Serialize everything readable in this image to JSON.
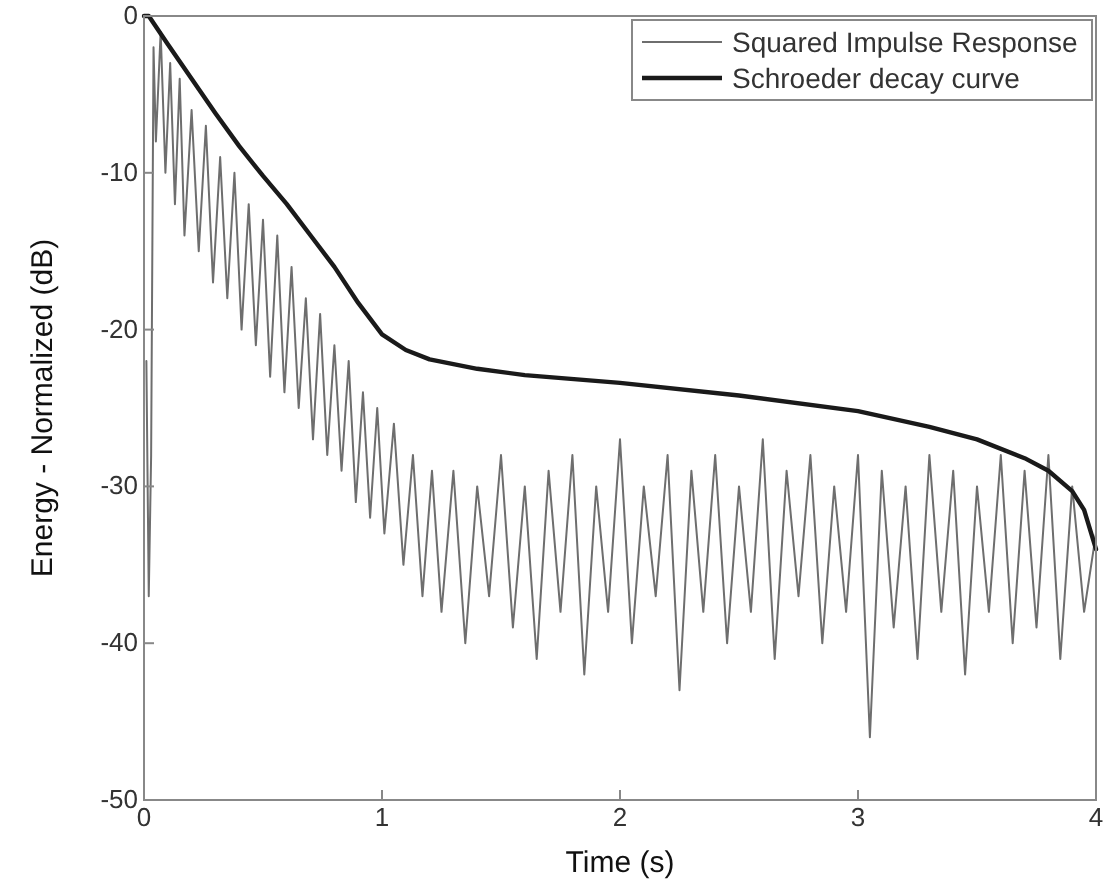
{
  "chart_data": {
    "type": "line",
    "xlabel": "Time (s)",
    "ylabel": "Energy - Normalized (dB)",
    "xlim": [
      0,
      4
    ],
    "ylim": [
      -50,
      0
    ],
    "xticks": [
      0,
      1,
      2,
      3,
      4
    ],
    "yticks": [
      -50,
      -40,
      -30,
      -20,
      -10,
      0
    ],
    "legend": "top right",
    "grid": false,
    "line_style": "solid",
    "series": [
      {
        "name": "Squared Impulse Response",
        "color": "#6e6e6e",
        "x": [
          0.01,
          0.02,
          0.03,
          0.04,
          0.05,
          0.07,
          0.09,
          0.11,
          0.13,
          0.15,
          0.17,
          0.2,
          0.23,
          0.26,
          0.29,
          0.32,
          0.35,
          0.38,
          0.41,
          0.44,
          0.47,
          0.5,
          0.53,
          0.56,
          0.59,
          0.62,
          0.65,
          0.68,
          0.71,
          0.74,
          0.77,
          0.8,
          0.83,
          0.86,
          0.89,
          0.92,
          0.95,
          0.98,
          1.01,
          1.05,
          1.09,
          1.13,
          1.17,
          1.21,
          1.25,
          1.3,
          1.35,
          1.4,
          1.45,
          1.5,
          1.55,
          1.6,
          1.65,
          1.7,
          1.75,
          1.8,
          1.85,
          1.9,
          1.95,
          2.0,
          2.05,
          2.1,
          2.15,
          2.2,
          2.25,
          2.3,
          2.35,
          2.4,
          2.45,
          2.5,
          2.55,
          2.6,
          2.65,
          2.7,
          2.75,
          2.8,
          2.85,
          2.9,
          2.95,
          3.0,
          3.05,
          3.1,
          3.15,
          3.2,
          3.25,
          3.3,
          3.35,
          3.4,
          3.45,
          3.5,
          3.55,
          3.6,
          3.65,
          3.7,
          3.75,
          3.8,
          3.85,
          3.9,
          3.95,
          4.0
        ],
        "values": [
          -22,
          -37,
          -28,
          -2,
          -8,
          -1,
          -10,
          -3,
          -12,
          -4,
          -14,
          -6,
          -15,
          -7,
          -17,
          -9,
          -18,
          -10,
          -20,
          -12,
          -21,
          -13,
          -23,
          -14,
          -24,
          -16,
          -25,
          -18,
          -27,
          -19,
          -28,
          -21,
          -29,
          -22,
          -31,
          -24,
          -32,
          -25,
          -33,
          -26,
          -35,
          -28,
          -37,
          -29,
          -38,
          -29,
          -40,
          -30,
          -37,
          -28,
          -39,
          -30,
          -41,
          -29,
          -38,
          -28,
          -42,
          -30,
          -38,
          -27,
          -40,
          -30,
          -37,
          -28,
          -43,
          -29,
          -38,
          -28,
          -40,
          -30,
          -38,
          -27,
          -41,
          -29,
          -37,
          -28,
          -40,
          -30,
          -38,
          -28,
          -46,
          -29,
          -39,
          -30,
          -41,
          -28,
          -38,
          -29,
          -42,
          -30,
          -38,
          -28,
          -40,
          -29,
          -39,
          -28,
          -41,
          -30,
          -38,
          -33
        ]
      },
      {
        "name": "Schroeder decay curve",
        "color": "#1a1a1a",
        "x": [
          0,
          0.02,
          0.1,
          0.2,
          0.3,
          0.4,
          0.5,
          0.6,
          0.7,
          0.8,
          0.9,
          1.0,
          1.1,
          1.2,
          1.4,
          1.6,
          2.0,
          2.5,
          3.0,
          3.3,
          3.5,
          3.7,
          3.8,
          3.9,
          3.95,
          4.0
        ],
        "values": [
          0,
          0,
          -1.8,
          -4,
          -6.2,
          -8.3,
          -10.2,
          -12,
          -14,
          -16,
          -18.3,
          -20.3,
          -21.3,
          -21.9,
          -22.5,
          -22.9,
          -23.4,
          -24.2,
          -25.2,
          -26.2,
          -27,
          -28.2,
          -29,
          -30.3,
          -31.5,
          -34
        ]
      }
    ]
  }
}
